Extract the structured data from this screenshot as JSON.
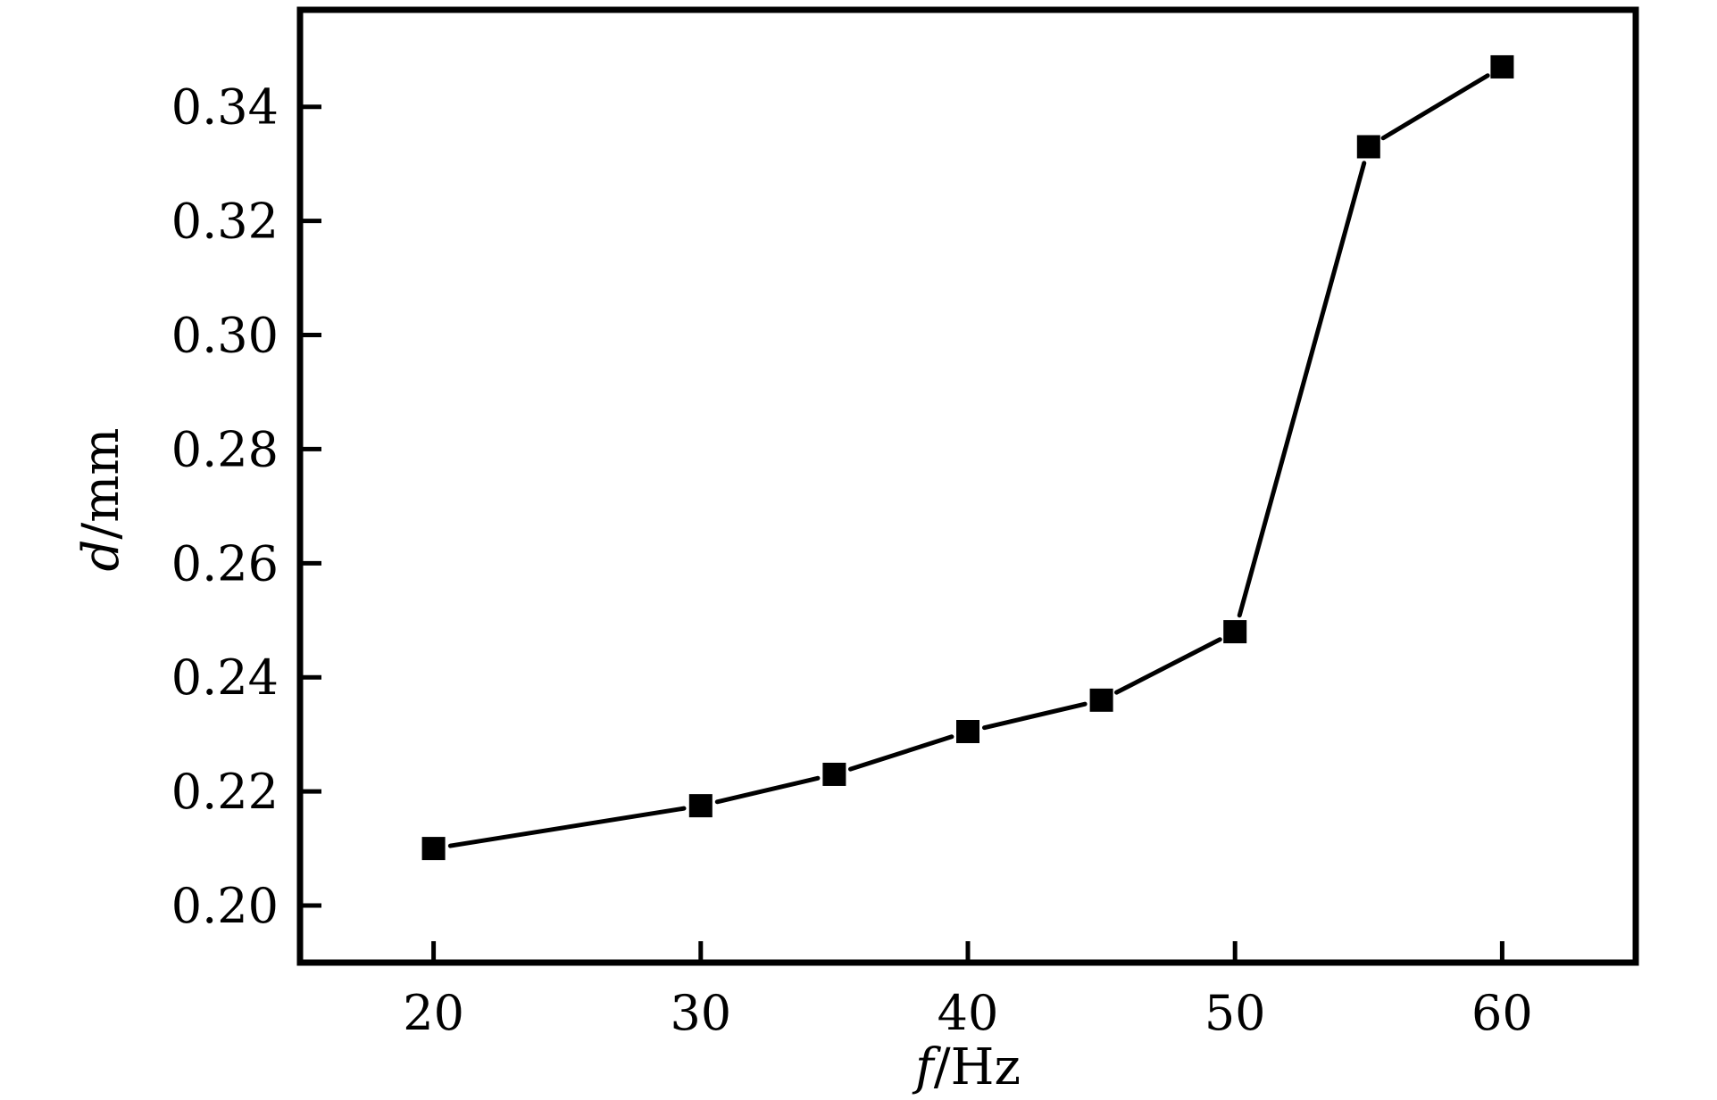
{
  "chart_data": {
    "type": "line",
    "title": "",
    "xlabel": {
      "var": "f",
      "unit": "/Hz"
    },
    "ylabel": {
      "var": "d",
      "unit": "/mm"
    },
    "xlim": [
      15,
      65
    ],
    "ylim": [
      0.19,
      0.357
    ],
    "x_ticks": [
      20,
      30,
      40,
      50,
      60
    ],
    "x_tick_labels": [
      "20",
      "30",
      "40",
      "50",
      "60"
    ],
    "y_ticks": [
      0.2,
      0.22,
      0.24,
      0.26,
      0.28,
      0.3,
      0.32,
      0.34
    ],
    "y_tick_labels": [
      "0.20",
      "0.22",
      "0.24",
      "0.26",
      "0.28",
      "0.30",
      "0.32",
      "0.34"
    ],
    "grid": false,
    "legend": "none",
    "series": [
      {
        "marker": "square",
        "color": "#000000",
        "x": [
          20,
          30,
          35,
          40,
          45,
          50,
          55,
          60
        ],
        "y": [
          0.21,
          0.2175,
          0.223,
          0.2305,
          0.236,
          0.248,
          0.333,
          0.347
        ]
      }
    ]
  }
}
